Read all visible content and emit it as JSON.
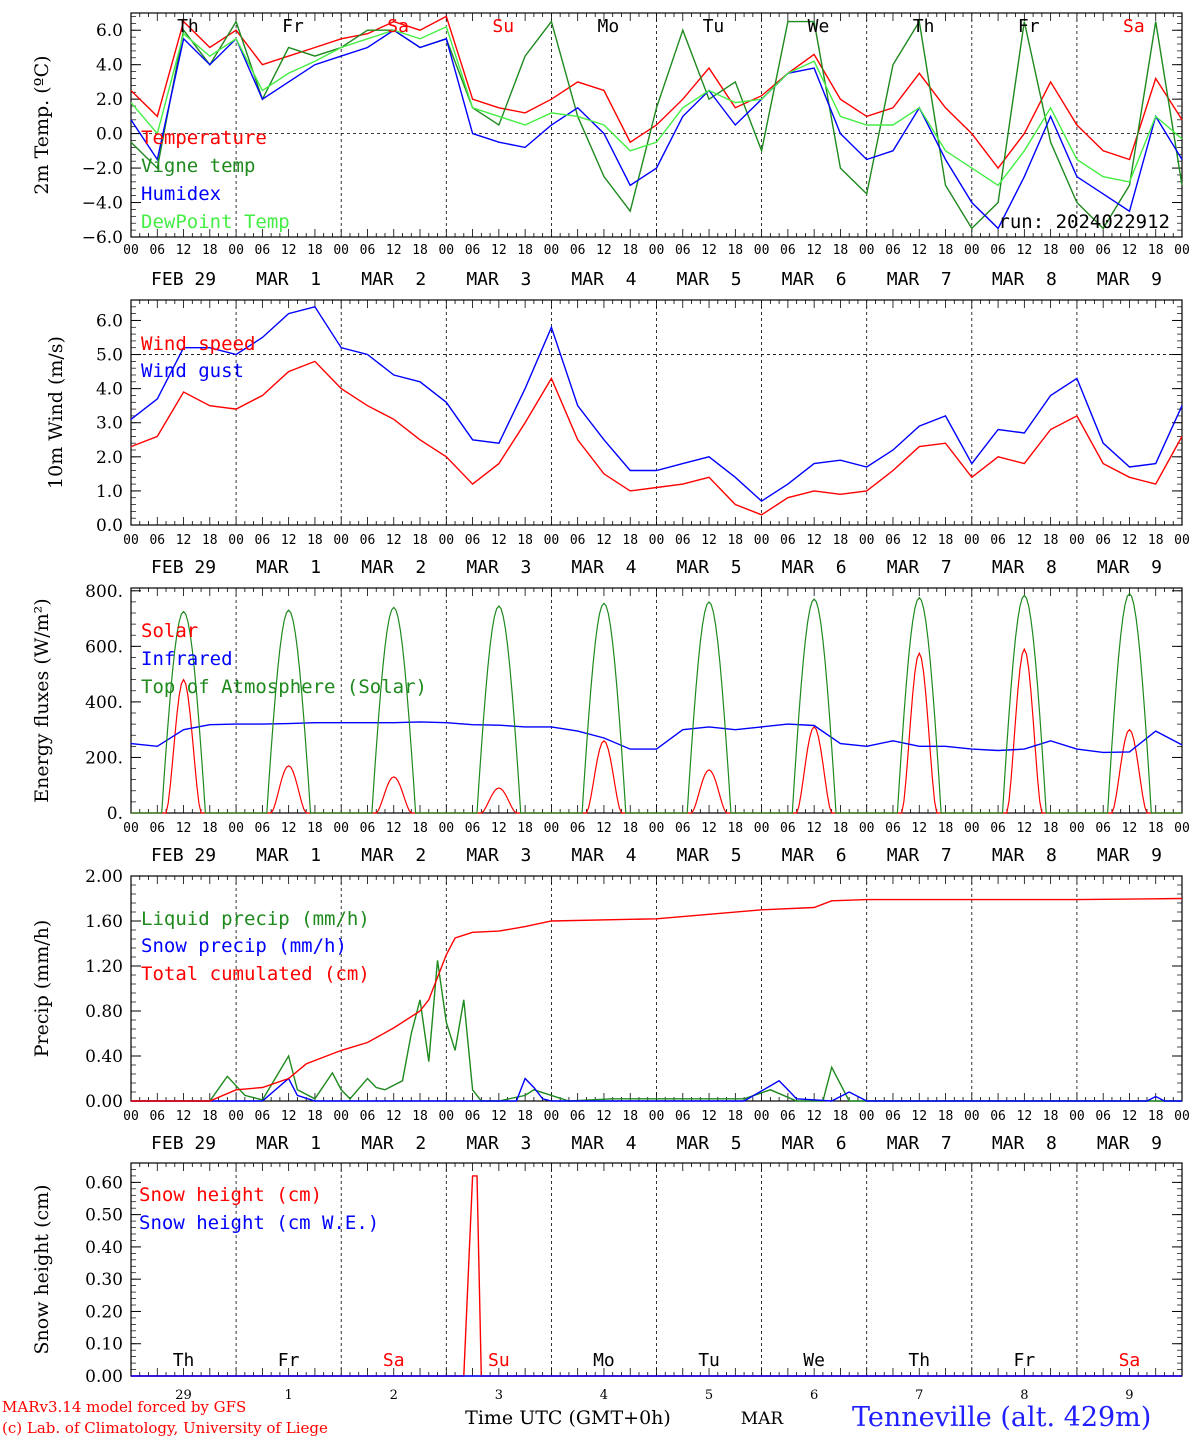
{
  "time_axis": {
    "hour_labels": [
      "00",
      "06",
      "12",
      "18"
    ],
    "final_label": "00",
    "date_labels": [
      "FEB 29",
      "MAR  1",
      "MAR  2",
      "MAR  3",
      "MAR  4",
      "MAR  5",
      "MAR  6",
      "MAR  7",
      "MAR  8",
      "MAR  9"
    ],
    "weekdays": [
      {
        "label": "Th",
        "color": "#000000"
      },
      {
        "label": "Fr",
        "color": "#000000"
      },
      {
        "label": "Sa",
        "color": "#ff0000"
      },
      {
        "label": "Su",
        "color": "#ff0000"
      },
      {
        "label": "Mo",
        "color": "#000000"
      },
      {
        "label": "Tu",
        "color": "#000000"
      },
      {
        "label": "We",
        "color": "#000000"
      },
      {
        "label": "Th",
        "color": "#000000"
      },
      {
        "label": "Fr",
        "color": "#000000"
      },
      {
        "label": "Sa",
        "color": "#ff0000"
      }
    ],
    "bottom_day_numbers": [
      "29",
      "1",
      "2",
      "3",
      "4",
      "5",
      "6",
      "7",
      "8",
      "9"
    ],
    "xlabel": "Time UTC (GMT+0h)",
    "month_label": "MAR"
  },
  "footer": {
    "model_line": "MARv3.14 model forced by GFS",
    "credit_line": "(c) Lab. of Climatology, University of Liege",
    "station": "Tenneville (alt. 429m)"
  },
  "chart_data": [
    {
      "type": "line",
      "id": "temperature",
      "ylabel": "2m Temp. (ºC)",
      "ylim": [
        -6,
        7
      ],
      "ytick_labels": [
        "6.0",
        "4.0",
        "2.0",
        "0.0",
        "−2.0",
        "−4.0",
        "−6.0"
      ],
      "ytick_values": [
        6,
        4,
        2,
        0,
        -2,
        -4,
        -6
      ],
      "reference_line": 0,
      "run_label": "run: 2024022912",
      "x_unit": "hours from FEB 29 00 UTC",
      "series": [
        {
          "name": "Temperature",
          "color": "#ff0000",
          "x": [
            0,
            6,
            12,
            18,
            24,
            30,
            36,
            42,
            48,
            54,
            60,
            66,
            72,
            78,
            84,
            90,
            96,
            102,
            108,
            114,
            120,
            126,
            132,
            138,
            144,
            150,
            156,
            162,
            168,
            174,
            180,
            186,
            192,
            198,
            204,
            210,
            216,
            222,
            228,
            234,
            240
          ],
          "values": [
            2.5,
            1.0,
            6.5,
            5.0,
            6.0,
            4.0,
            4.5,
            5.0,
            5.5,
            5.8,
            6.5,
            6.0,
            6.8,
            2.0,
            1.5,
            1.2,
            2.0,
            3.0,
            2.5,
            -0.5,
            0.5,
            2.0,
            3.8,
            1.5,
            2.2,
            3.5,
            4.6,
            2.0,
            1.0,
            1.5,
            3.5,
            1.5,
            0.0,
            -2.0,
            0.0,
            3.0,
            0.5,
            -1.0,
            -1.5,
            3.2,
            0.8
          ]
        },
        {
          "name": "Vigne temp",
          "color": "#1e8a1e",
          "x": [
            0,
            6,
            12,
            18,
            24,
            30,
            36,
            42,
            48,
            54,
            60,
            66,
            72,
            78,
            84,
            90,
            96,
            102,
            108,
            114,
            120,
            126,
            132,
            138,
            144,
            150,
            156,
            162,
            168,
            174,
            180,
            186,
            192,
            198,
            204,
            210,
            216,
            222,
            228,
            234,
            240
          ],
          "values": [
            -0.5,
            -2.0,
            6.0,
            4.0,
            6.5,
            2.0,
            5.0,
            4.5,
            5.0,
            6.0,
            6.0,
            5.0,
            5.5,
            1.5,
            0.5,
            4.5,
            6.5,
            1.0,
            -2.5,
            -4.5,
            1.5,
            6.0,
            2.0,
            3.0,
            -1.0,
            6.5,
            6.5,
            -2.0,
            -3.5,
            4.0,
            6.5,
            -3.0,
            -5.5,
            -4.0,
            6.5,
            -0.5,
            -4.0,
            -5.5,
            -3.0,
            6.5,
            -3.0
          ]
        },
        {
          "name": "Humidex",
          "color": "#0000ff",
          "x": [
            0,
            6,
            12,
            18,
            24,
            30,
            36,
            42,
            48,
            54,
            60,
            66,
            72,
            78,
            84,
            90,
            96,
            102,
            108,
            114,
            120,
            126,
            132,
            138,
            144,
            150,
            156,
            162,
            168,
            174,
            180,
            186,
            192,
            198,
            204,
            210,
            216,
            222,
            228,
            234,
            240
          ],
          "values": [
            0.8,
            -1.5,
            5.5,
            4.0,
            5.5,
            2.0,
            3.0,
            4.0,
            4.5,
            5.0,
            6.0,
            5.0,
            5.5,
            0.0,
            -0.5,
            -0.8,
            0.5,
            1.5,
            0.0,
            -3.0,
            -2.0,
            1.0,
            2.5,
            0.5,
            2.0,
            3.5,
            3.8,
            0.0,
            -1.5,
            -1.0,
            1.5,
            -1.5,
            -4.0,
            -5.5,
            -2.5,
            1.0,
            -2.5,
            -3.5,
            -4.5,
            1.0,
            -1.5
          ]
        },
        {
          "name": "DewPoint Temp",
          "color": "#44ee44",
          "x": [
            0,
            6,
            12,
            18,
            24,
            30,
            36,
            42,
            48,
            54,
            60,
            66,
            72,
            78,
            84,
            90,
            96,
            102,
            108,
            114,
            120,
            126,
            132,
            138,
            144,
            150,
            156,
            162,
            168,
            174,
            180,
            186,
            192,
            198,
            204,
            210,
            216,
            222,
            228,
            234,
            240
          ],
          "values": [
            1.8,
            0.0,
            5.8,
            4.5,
            5.5,
            2.5,
            3.5,
            4.2,
            5.0,
            5.5,
            6.0,
            5.5,
            6.2,
            1.5,
            1.0,
            0.5,
            1.2,
            1.0,
            0.5,
            -1.0,
            -0.5,
            1.5,
            2.5,
            1.8,
            2.0,
            3.5,
            4.2,
            1.0,
            0.5,
            0.5,
            1.5,
            -1.0,
            -2.0,
            -3.0,
            -1.0,
            1.5,
            -1.5,
            -2.5,
            -2.8,
            1.0,
            -0.3
          ]
        }
      ]
    },
    {
      "type": "line",
      "id": "wind",
      "ylabel": "10m Wind (m/s)",
      "ylim": [
        0,
        6.6
      ],
      "ytick_labels": [
        "6.0",
        "5.0",
        "4.0",
        "3.0",
        "2.0",
        "1.0",
        "0.0"
      ],
      "ytick_values": [
        6,
        5,
        4,
        3,
        2,
        1,
        0
      ],
      "reference_line": 5,
      "x_unit": "hours from FEB 29 00 UTC",
      "series": [
        {
          "name": "Wind speed",
          "color": "#ff0000",
          "x": [
            0,
            6,
            12,
            18,
            24,
            30,
            36,
            42,
            48,
            54,
            60,
            66,
            72,
            78,
            84,
            90,
            96,
            102,
            108,
            114,
            120,
            126,
            132,
            138,
            144,
            150,
            156,
            162,
            168,
            174,
            180,
            186,
            192,
            198,
            204,
            210,
            216,
            222,
            228,
            234,
            240
          ],
          "values": [
            2.3,
            2.6,
            3.9,
            3.5,
            3.4,
            3.8,
            4.5,
            4.8,
            4.0,
            3.5,
            3.1,
            2.5,
            2.0,
            1.2,
            1.8,
            3.0,
            4.3,
            2.5,
            1.5,
            1.0,
            1.1,
            1.2,
            1.4,
            0.6,
            0.3,
            0.8,
            1.0,
            0.9,
            1.0,
            1.6,
            2.3,
            2.4,
            1.4,
            2.0,
            1.8,
            2.8,
            3.2,
            1.8,
            1.4,
            1.2,
            2.6
          ]
        },
        {
          "name": "Wind gust",
          "color": "#0000ff",
          "x": [
            0,
            6,
            12,
            18,
            24,
            30,
            36,
            42,
            48,
            54,
            60,
            66,
            72,
            78,
            84,
            90,
            96,
            102,
            108,
            114,
            120,
            126,
            132,
            138,
            144,
            150,
            156,
            162,
            168,
            174,
            180,
            186,
            192,
            198,
            204,
            210,
            216,
            222,
            228,
            234,
            240
          ],
          "values": [
            3.1,
            3.7,
            5.2,
            5.2,
            5.0,
            5.5,
            6.2,
            6.4,
            5.2,
            5.0,
            4.4,
            4.2,
            3.6,
            2.5,
            2.4,
            4.0,
            5.8,
            3.5,
            2.5,
            1.6,
            1.6,
            1.8,
            2.0,
            1.4,
            0.7,
            1.2,
            1.8,
            1.9,
            1.7,
            2.2,
            2.9,
            3.2,
            1.8,
            2.8,
            2.7,
            3.8,
            4.3,
            2.4,
            1.7,
            1.8,
            3.5
          ]
        }
      ]
    },
    {
      "type": "line",
      "id": "energy",
      "ylabel": "Energy fluxes (W/m²)",
      "ylim": [
        0,
        810
      ],
      "ytick_labels": [
        "800.",
        "600.",
        "400.",
        "200.",
        "0."
      ],
      "ytick_values": [
        800,
        600,
        400,
        200,
        0
      ],
      "x_unit": "hours from FEB 29 00 UTC",
      "series": [
        {
          "name": "Solar",
          "color": "#ff0000",
          "daily_peaks": [
            480,
            170,
            130,
            90,
            260,
            155,
            310,
            575,
            590,
            300
          ]
        },
        {
          "name": "Infrared",
          "color": "#0000ff",
          "x": [
            0,
            6,
            12,
            18,
            24,
            30,
            36,
            42,
            48,
            54,
            60,
            66,
            72,
            78,
            84,
            90,
            96,
            102,
            108,
            114,
            120,
            126,
            132,
            138,
            144,
            150,
            156,
            162,
            168,
            174,
            180,
            186,
            192,
            198,
            204,
            210,
            216,
            222,
            228,
            234,
            240
          ],
          "values": [
            250,
            240,
            300,
            318,
            320,
            320,
            322,
            325,
            325,
            325,
            325,
            328,
            325,
            318,
            316,
            310,
            310,
            295,
            270,
            230,
            230,
            300,
            310,
            300,
            310,
            320,
            315,
            250,
            240,
            260,
            240,
            240,
            230,
            225,
            230,
            260,
            230,
            218,
            220,
            295,
            245
          ]
        },
        {
          "name": "Top of Atmosphere (Solar)",
          "color": "#1e8a1e",
          "daily_peaks": [
            725,
            730,
            740,
            745,
            755,
            760,
            770,
            775,
            783,
            790
          ]
        }
      ]
    },
    {
      "type": "line",
      "id": "precip",
      "ylabel": "Precip (mm/h)",
      "ylim": [
        0,
        2.0
      ],
      "ytick_labels": [
        "2.00",
        "1.60",
        "1.20",
        "0.80",
        "0.40",
        "0.00"
      ],
      "ytick_values": [
        2.0,
        1.6,
        1.2,
        0.8,
        0.4,
        0.0
      ],
      "x_unit": "hours from FEB 29 00 UTC",
      "series": [
        {
          "name": "Liquid precip (mm/h)",
          "color": "#1e8a1e",
          "x": [
            0,
            18,
            22,
            26,
            30,
            36,
            38,
            42,
            46,
            48,
            50,
            54,
            56,
            58,
            62,
            64,
            66,
            68,
            70,
            72,
            74,
            76,
            78,
            80,
            84,
            90,
            92,
            96,
            100,
            110,
            140,
            146,
            152,
            158,
            160,
            164,
            168,
            172,
            240
          ],
          "values": [
            0,
            0,
            0.22,
            0.05,
            0.01,
            0.4,
            0.1,
            0.02,
            0.25,
            0.1,
            0.02,
            0.2,
            0.12,
            0.1,
            0.18,
            0.6,
            0.9,
            0.35,
            1.25,
            0.7,
            0.45,
            0.9,
            0.1,
            0,
            0,
            0.05,
            0.1,
            0.05,
            0,
            0.02,
            0.02,
            0.1,
            0,
            0,
            0.3,
            0,
            0,
            0,
            0
          ]
        },
        {
          "name": "Snow precip (mm/h)",
          "color": "#0000ff",
          "x": [
            0,
            30,
            36,
            38,
            42,
            80,
            88,
            90,
            92,
            94,
            96,
            100,
            140,
            148,
            150,
            152,
            160,
            164,
            166,
            168,
            232,
            234,
            236,
            240
          ],
          "values": [
            0,
            0,
            0.2,
            0.05,
            0,
            0,
            0,
            0.2,
            0.12,
            0.02,
            0,
            0,
            0,
            0.18,
            0.1,
            0.02,
            0,
            0.08,
            0.04,
            0,
            0,
            0.04,
            0,
            0
          ]
        },
        {
          "name": "Total cumulated (cm)",
          "color": "#ff0000",
          "x": [
            0,
            18,
            24,
            30,
            36,
            40,
            48,
            54,
            60,
            66,
            68,
            72,
            74,
            78,
            84,
            90,
            96,
            120,
            132,
            144,
            156,
            160,
            168,
            192,
            216,
            240
          ],
          "values": [
            0,
            0,
            0.1,
            0.12,
            0.2,
            0.33,
            0.45,
            0.52,
            0.65,
            0.8,
            0.9,
            1.3,
            1.45,
            1.5,
            1.51,
            1.55,
            1.6,
            1.62,
            1.66,
            1.7,
            1.72,
            1.78,
            1.79,
            1.79,
            1.79,
            1.8
          ]
        }
      ]
    },
    {
      "type": "line",
      "id": "snow",
      "ylabel": "Snow height (cm)",
      "ylim": [
        0,
        0.66
      ],
      "ytick_labels": [
        "0.60",
        "0.50",
        "0.40",
        "0.30",
        "0.20",
        "0.10",
        "0.00"
      ],
      "ytick_values": [
        0.6,
        0.5,
        0.4,
        0.3,
        0.2,
        0.1,
        0.0
      ],
      "x_unit": "hours from FEB 29 00 UTC",
      "series": [
        {
          "name": "Snow height (cm)",
          "color": "#ff0000",
          "x": [
            0,
            76,
            78,
            79,
            80,
            240
          ],
          "values": [
            0,
            0,
            0.62,
            0.62,
            0,
            0
          ]
        },
        {
          "name": "Snow height (cm W.E.)",
          "color": "#0000ff",
          "x": [
            0,
            240
          ],
          "values": [
            0,
            0
          ]
        }
      ]
    }
  ]
}
